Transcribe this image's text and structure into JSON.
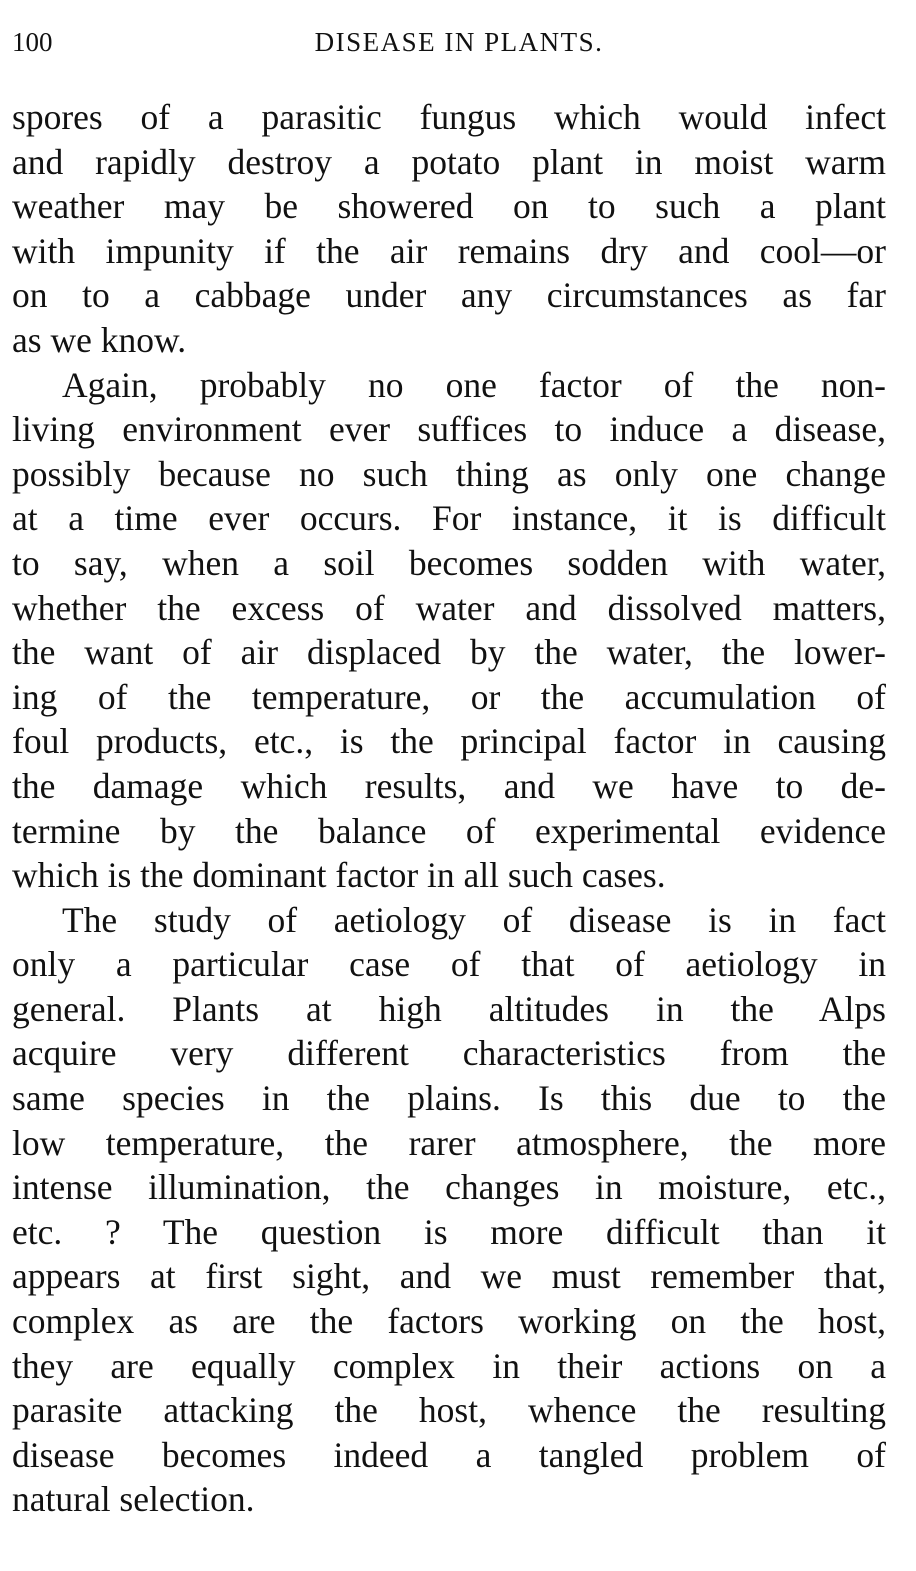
{
  "header": {
    "page_number": "100",
    "running_title": "DISEASE IN PLANTS."
  },
  "lines": [
    {
      "text": "spores of a parasitic fungus which would infect"
    },
    {
      "text": "and rapidly destroy a potato plant in moist warm"
    },
    {
      "text": "weather may be showered on to such a plant"
    },
    {
      "text": "with impunity if the air remains dry and cool—or"
    },
    {
      "text": "on to a cabbage under any circumstances as far"
    },
    {
      "text": "as we know.",
      "last": true
    },
    {
      "text": "Again, probably no one factor of the non-",
      "indent": true
    },
    {
      "text": "living environment ever suffices to induce a disease,"
    },
    {
      "text": "possibly because no such thing as only one change"
    },
    {
      "text": "at a time ever occurs.  For instance, it is difficult"
    },
    {
      "text": "to say, when a soil becomes sodden with water,"
    },
    {
      "text": "whether the excess of water and dissolved matters,"
    },
    {
      "text": "the want of air displaced by the water, the lower-"
    },
    {
      "text": "ing of the temperature, or the accumulation of"
    },
    {
      "text": "foul products, etc., is the principal factor in causing"
    },
    {
      "text": "the damage which results, and we have to de-"
    },
    {
      "text": "termine by the balance of experimental evidence"
    },
    {
      "text": "which is the dominant factor in all such cases.",
      "last": true
    },
    {
      "text": "The study of aetiology of disease is in fact",
      "indent": true
    },
    {
      "text": "only a particular case of that of aetiology in"
    },
    {
      "text": "general.  Plants at high altitudes in the Alps"
    },
    {
      "text": "acquire very different characteristics from the"
    },
    {
      "text": "same species in the plains.  Is this due to the"
    },
    {
      "text": "low temperature, the rarer atmosphere, the more"
    },
    {
      "text": "intense illumination, the changes in moisture, etc.,"
    },
    {
      "text": "etc. ?  The question is more difficult than it"
    },
    {
      "text": "appears at first sight, and we must remember that,"
    },
    {
      "text": "complex as are the factors working on the host,"
    },
    {
      "text": "they are equally complex in their actions on a"
    },
    {
      "text": "parasite attacking the host, whence the resulting"
    },
    {
      "text": "disease becomes indeed a tangled problem of"
    },
    {
      "text": "natural selection.",
      "last": true
    }
  ]
}
